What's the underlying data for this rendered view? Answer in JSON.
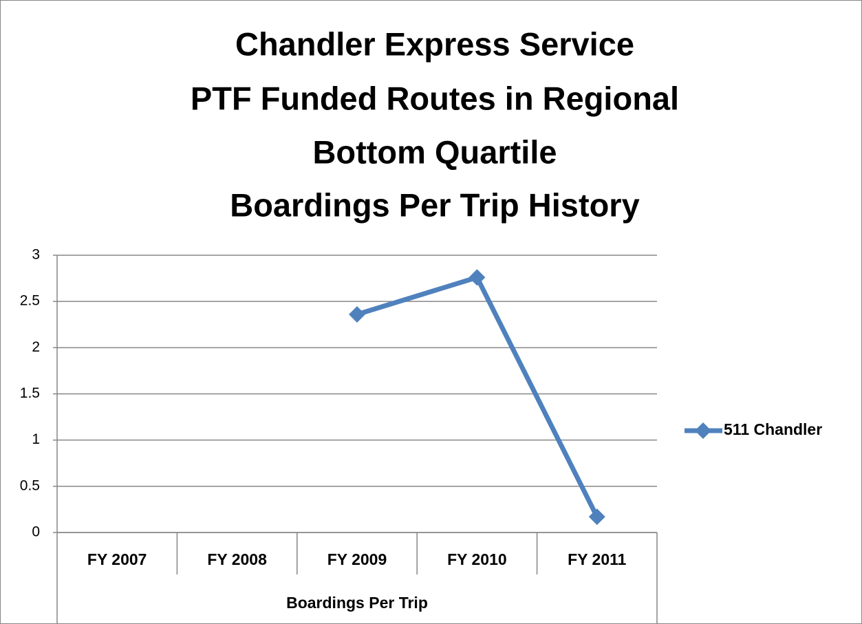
{
  "chart_data": {
    "type": "line",
    "title": [
      "Chandler Express Service",
      "PTF Funded Routes in Regional",
      "Bottom Quartile",
      "Boardings Per Trip History"
    ],
    "categories": [
      "FY 2007",
      "FY 2008",
      "FY 2009",
      "FY 2010",
      "FY 2011"
    ],
    "category_group": "Boardings Per Trip",
    "series": [
      {
        "name": "511 Chandler",
        "color": "#4f81bd",
        "values": [
          null,
          null,
          2.36,
          2.76,
          0.17
        ]
      }
    ],
    "ylim": [
      0,
      3
    ],
    "yticks": [
      0,
      0.5,
      1,
      1.5,
      2,
      2.5,
      3
    ],
    "grid": true,
    "legend": "right"
  }
}
